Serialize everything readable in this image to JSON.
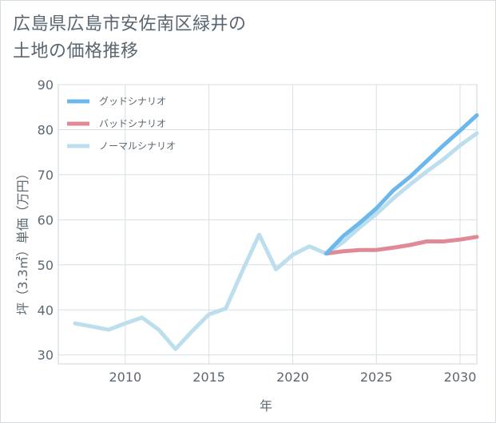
{
  "chart_data": {
    "type": "line",
    "title_lines": [
      "広島県広島市安佐南区緑井の",
      "土地の価格推移"
    ],
    "xlabel": "年",
    "ylabel": "坪（3.3㎡）単価（万円）",
    "xlim": [
      2006,
      2031
    ],
    "ylim": [
      28,
      90
    ],
    "xticks": [
      2010,
      2015,
      2020,
      2025,
      2030
    ],
    "yticks": [
      30,
      40,
      50,
      60,
      70,
      80,
      90
    ],
    "grid": true,
    "legend_position": "top-left",
    "series": [
      {
        "name": "グッドシナリオ",
        "color": "#6cb8ec",
        "x": [
          2022,
          2023,
          2024,
          2025,
          2026,
          2027,
          2028,
          2029,
          2030,
          2031
        ],
        "values": [
          52.5,
          56.3,
          59.3,
          62.5,
          66.5,
          69.5,
          73.0,
          76.5,
          79.8,
          83.2
        ]
      },
      {
        "name": "バッドシナリオ",
        "color": "#df8a96",
        "x": [
          2022,
          2023,
          2024,
          2025,
          2026,
          2027,
          2028,
          2029,
          2030,
          2031
        ],
        "values": [
          52.5,
          53.0,
          53.3,
          53.3,
          53.8,
          54.4,
          55.2,
          55.2,
          55.6,
          56.2
        ]
      },
      {
        "name": "ノーマルシナリオ",
        "color": "#bcdeed",
        "x": [
          2007,
          2008,
          2009,
          2010,
          2011,
          2012,
          2013,
          2014,
          2015,
          2016,
          2017,
          2018,
          2019,
          2020,
          2021,
          2022,
          2023,
          2024,
          2025,
          2026,
          2027,
          2028,
          2029,
          2030,
          2031
        ],
        "values": [
          37.0,
          36.3,
          35.6,
          37.0,
          38.3,
          35.6,
          31.3,
          35.3,
          39.0,
          40.3,
          48.7,
          56.7,
          49.0,
          52.2,
          54.1,
          52.5,
          55.0,
          58.3,
          61.3,
          64.7,
          67.8,
          70.7,
          73.4,
          76.5,
          79.2
        ]
      }
    ]
  }
}
